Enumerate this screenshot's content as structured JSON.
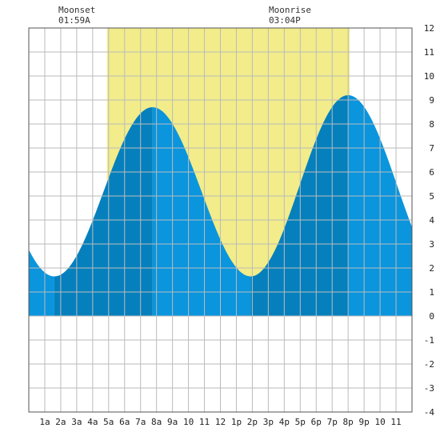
{
  "annotations": [
    {
      "label": "Moonset",
      "time": "01:59A"
    },
    {
      "label": "Moonrise",
      "time": "03:04P"
    }
  ],
  "colors": {
    "daylight": "#f2ec8a",
    "tide_light": "#0a95dd",
    "tide_dark": "#0580bd",
    "grid": "#bbbbbb",
    "border": "#555555"
  },
  "chart_data": {
    "type": "area",
    "title": "",
    "xlabel": "",
    "ylabel": "",
    "x_unit": "hour of day",
    "xlim": [
      0,
      24
    ],
    "ylim": [
      -4,
      12
    ],
    "grid": true,
    "y_ticks": [
      -4,
      -3,
      -2,
      -1,
      0,
      1,
      2,
      3,
      4,
      5,
      6,
      7,
      8,
      9,
      10,
      11,
      12
    ],
    "x_tick_labels": [
      {
        "x": 1,
        "label": "1a"
      },
      {
        "x": 2,
        "label": "2a"
      },
      {
        "x": 3,
        "label": "3a"
      },
      {
        "x": 4,
        "label": "4a"
      },
      {
        "x": 5,
        "label": "5a"
      },
      {
        "x": 6,
        "label": "6a"
      },
      {
        "x": 7,
        "label": "7a"
      },
      {
        "x": 8,
        "label": "8a"
      },
      {
        "x": 9,
        "label": "9a"
      },
      {
        "x": 10,
        "label": "10"
      },
      {
        "x": 11,
        "label": "11"
      },
      {
        "x": 12,
        "label": "12"
      },
      {
        "x": 13,
        "label": "1p"
      },
      {
        "x": 14,
        "label": "2p"
      },
      {
        "x": 15,
        "label": "3p"
      },
      {
        "x": 16,
        "label": "4p"
      },
      {
        "x": 17,
        "label": "5p"
      },
      {
        "x": 18,
        "label": "6p"
      },
      {
        "x": 19,
        "label": "7p"
      },
      {
        "x": 20,
        "label": "8p"
      },
      {
        "x": 21,
        "label": "9p"
      },
      {
        "x": 22,
        "label": "10"
      },
      {
        "x": 23,
        "label": "11"
      }
    ],
    "daylight": [
      4.9,
      20.1
    ],
    "tide_extrema": [
      {
        "x": 1.6,
        "y": 1.65
      },
      {
        "x": 7.75,
        "y": 8.7
      },
      {
        "x": 13.9,
        "y": 1.65
      },
      {
        "x": 20.0,
        "y": 9.2
      },
      {
        "x": 26.15,
        "y": 1.65
      }
    ],
    "tide_phases": [
      {
        "from": 0,
        "to": 1.6,
        "shade": "light"
      },
      {
        "from": 1.6,
        "to": 7.75,
        "shade": "dark"
      },
      {
        "from": 7.75,
        "to": 13.9,
        "shade": "light"
      },
      {
        "from": 13.9,
        "to": 20.0,
        "shade": "dark"
      },
      {
        "from": 20.0,
        "to": 24,
        "shade": "light"
      }
    ]
  }
}
